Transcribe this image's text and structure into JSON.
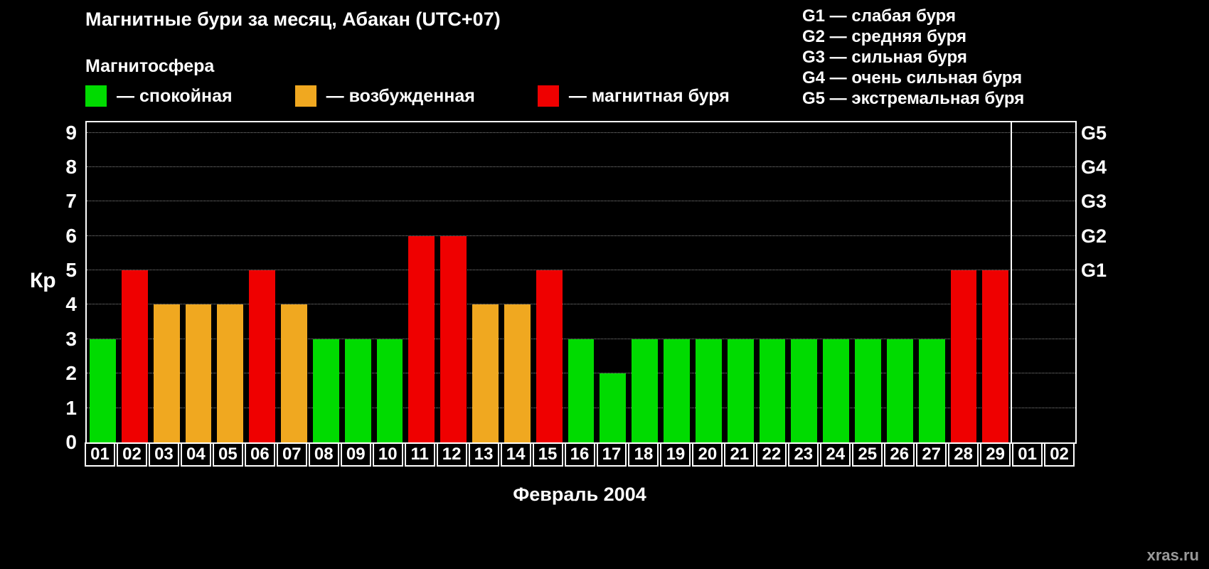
{
  "header": {
    "title": "Магнитные бури за месяц, Абакан (UTC+07)",
    "legend_title": "Магнитосфера",
    "legend": [
      {
        "state": "quiet",
        "color": "#00db00",
        "label": "— спокойная"
      },
      {
        "state": "excited",
        "color": "#f0a820",
        "label": "— возбужденная"
      },
      {
        "state": "storm",
        "color": "#ef0000",
        "label": "— магнитная буря"
      }
    ],
    "g_legend": [
      "G1 — слабая буря",
      "G2 — средняя буря",
      "G3 — сильная буря",
      "G4 — очень сильная буря",
      "G5 — экстремальная буря"
    ]
  },
  "chart_data": {
    "type": "bar",
    "title": "Магнитные бури за месяц, Абакан (UTC+07)",
    "ylabel": "Кр",
    "xlabel": "Февраль 2004",
    "ylim": [
      0,
      9.3
    ],
    "yticks": [
      0,
      1,
      2,
      3,
      4,
      5,
      6,
      7,
      8,
      9
    ],
    "grid": "dotted-horizontal",
    "right_axis": [
      {
        "label": "G1",
        "kp": 5
      },
      {
        "label": "G2",
        "kp": 6
      },
      {
        "label": "G3",
        "kp": 7
      },
      {
        "label": "G4",
        "kp": 8
      },
      {
        "label": "G5",
        "kp": 9
      }
    ],
    "categories": [
      "01",
      "02",
      "03",
      "04",
      "05",
      "06",
      "07",
      "08",
      "09",
      "10",
      "11",
      "12",
      "13",
      "14",
      "15",
      "16",
      "17",
      "18",
      "19",
      "20",
      "21",
      "22",
      "23",
      "24",
      "25",
      "26",
      "27",
      "28",
      "29",
      "01",
      "02"
    ],
    "values": [
      3,
      5,
      4,
      4,
      4,
      5,
      4,
      3,
      3,
      3,
      6,
      6,
      4,
      4,
      5,
      3,
      2,
      3,
      3,
      3,
      3,
      3,
      3,
      3,
      3,
      3,
      3,
      5,
      5,
      null,
      null
    ],
    "states": [
      "quiet",
      "storm",
      "excited",
      "excited",
      "excited",
      "storm",
      "excited",
      "quiet",
      "quiet",
      "quiet",
      "storm",
      "storm",
      "excited",
      "excited",
      "storm",
      "quiet",
      "quiet",
      "quiet",
      "quiet",
      "quiet",
      "quiet",
      "quiet",
      "quiet",
      "quiet",
      "quiet",
      "quiet",
      "quiet",
      "storm",
      "storm",
      null,
      null
    ],
    "state_colors": {
      "quiet": "#00db00",
      "excited": "#f0a820",
      "storm": "#ef0000"
    },
    "next_month_start_index": 29
  },
  "footer": {
    "watermark": "xras.ru"
  }
}
